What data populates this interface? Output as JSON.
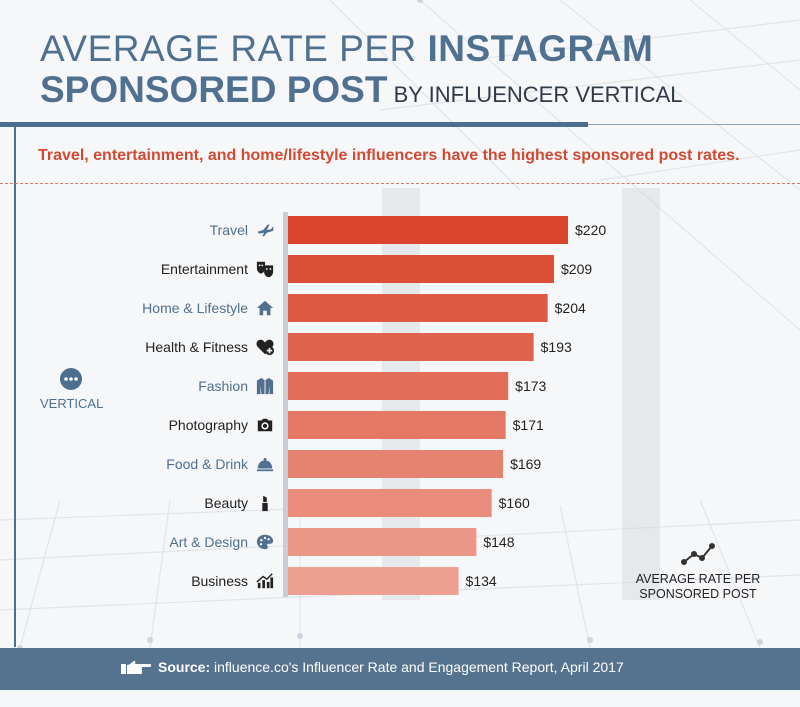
{
  "title": {
    "line1_light": "AVERAGE RATE PER ",
    "line1_bold": "INSTAGRAM",
    "line2_bold": "SPONSORED POST",
    "line2_light": " BY INFLUENCER VERTICAL"
  },
  "subtitle": "Travel, entertainment, and home/lifestyle influencers have the highest sponsored post rates.",
  "axis_title": "VERTICAL",
  "legend_label": "AVERAGE RATE PER\nSPONSORED POST",
  "footer": {
    "source_label": "Source:",
    "source_text": " influence.co's Influencer Rate and Engagement Report, April 2017"
  },
  "colors": {
    "title_blue": "#4f708f",
    "accent_red": "#d24a32",
    "footer_blue": "#55738f",
    "bar_top": "#d9452c",
    "bar_bottom": "#eda092"
  },
  "chart_data": {
    "type": "bar",
    "orientation": "horizontal",
    "title": "Average Rate per Instagram Sponsored Post by Influencer Vertical",
    "xlabel": "Average rate per sponsored post",
    "ylabel": "Vertical",
    "xlim": [
      0,
      220
    ],
    "categories": [
      "Travel",
      "Entertainment",
      "Home & Lifestyle",
      "Health & Fitness",
      "Fashion",
      "Photography",
      "Food & Drink",
      "Beauty",
      "Art & Design",
      "Business"
    ],
    "values": [
      220,
      209,
      204,
      193,
      173,
      171,
      169,
      160,
      148,
      134
    ],
    "value_labels": [
      "$220",
      "$209",
      "$204",
      "$193",
      "$173",
      "$171",
      "$169",
      "$160",
      "$148",
      "$134"
    ],
    "category_icons": [
      "airplane-icon",
      "theater-masks-icon",
      "house-icon",
      "heart-plus-icon",
      "jacket-icon",
      "camera-icon",
      "serving-cloche-icon",
      "lipstick-icon",
      "palette-icon",
      "bar-chart-icon"
    ],
    "label_colors": [
      "#4f708f",
      "#222222",
      "#4f708f",
      "#222222",
      "#4f708f",
      "#222222",
      "#4f708f",
      "#222222",
      "#4f708f",
      "#222222"
    ],
    "grid": false
  }
}
